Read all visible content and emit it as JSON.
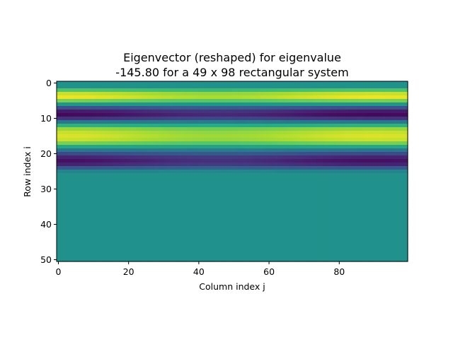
{
  "chart_data": {
    "type": "heatmap",
    "title_lines": [
      "Eigenvector (reshaped) for eigenvalue",
      "-145.80 for a 49 x 98 rectangular system"
    ],
    "xlabel": "Column index j",
    "ylabel": "Row index i",
    "xlim": [
      -0.5,
      99.5
    ],
    "ylim": [
      50.5,
      -0.5
    ],
    "x_ticks": [
      0,
      20,
      40,
      60,
      80
    ],
    "y_ticks": [
      0,
      10,
      20,
      30,
      40,
      50
    ],
    "x_tick_labels": [
      "0",
      "20",
      "40",
      "60",
      "80"
    ],
    "y_tick_labels": [
      "0",
      "10",
      "20",
      "30",
      "40",
      "50"
    ],
    "colormap": "viridis",
    "value_range": [
      -1,
      1
    ],
    "grid": false,
    "nonzero_rows": [
      2,
      25
    ],
    "row_profile": {
      "rows": [
        0,
        1,
        2,
        3,
        4,
        5,
        6,
        7,
        8,
        9,
        10,
        11,
        12,
        13,
        14,
        15,
        16,
        17,
        18,
        19,
        20,
        21,
        22,
        23,
        24,
        25,
        26,
        27,
        28,
        29,
        30,
        31,
        32,
        33,
        34,
        35,
        36,
        37,
        38,
        39,
        40,
        41,
        42,
        43,
        44,
        45,
        46,
        47,
        48,
        49,
        50
      ],
      "values": [
        0,
        0,
        0.45,
        0.85,
        0.95,
        0.6,
        0.05,
        -0.5,
        -0.85,
        -0.95,
        -0.7,
        -0.2,
        0.3,
        0.7,
        0.85,
        0.9,
        0.85,
        0.6,
        0.2,
        -0.2,
        -0.55,
        -0.8,
        -0.9,
        -0.8,
        -0.45,
        -0.1,
        0,
        0,
        0,
        0,
        0,
        0,
        0,
        0,
        0,
        0,
        0,
        0,
        0,
        0,
        0,
        0,
        0,
        0,
        0,
        0,
        0,
        0,
        0,
        0,
        0
      ]
    }
  }
}
